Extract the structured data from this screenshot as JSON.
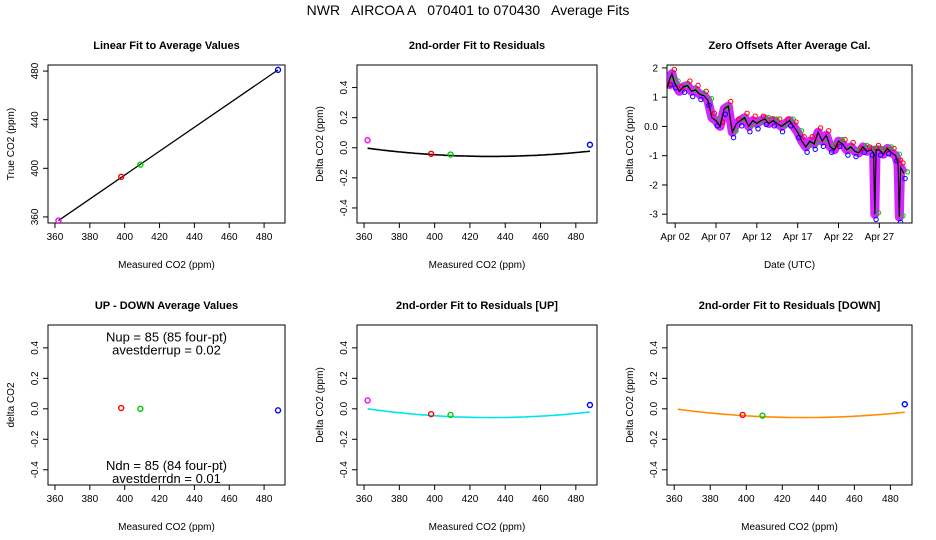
{
  "page": {
    "title": "NWR   AIRCOA A   070401 to 070430   Average Fits"
  },
  "chart_data": [
    {
      "id": "p1",
      "type": "scatter",
      "title": "Linear Fit to Average Values",
      "xlabel": "Measured CO2 (ppm)",
      "ylabel": "True CO2 (ppm)",
      "xlim": [
        356,
        492
      ],
      "ylim": [
        355,
        485
      ],
      "xticks": [
        360,
        380,
        400,
        420,
        440,
        460,
        480
      ],
      "yticks": [
        360,
        400,
        440,
        480
      ],
      "yticks_rotated": true,
      "points": [
        {
          "x": 362,
          "y": 357,
          "color": "#ff00ff"
        },
        {
          "x": 398,
          "y": 393,
          "color": "#ff0000"
        },
        {
          "x": 409,
          "y": 403,
          "color": "#00cc00"
        },
        {
          "x": 488,
          "y": 481,
          "color": "#0000ff"
        }
      ],
      "lines": [
        {
          "x": [
            362,
            488
          ],
          "y": [
            357,
            481
          ],
          "color": "#000000"
        }
      ]
    },
    {
      "id": "p2",
      "type": "scatter",
      "title": "2nd-order Fit to Residuals",
      "xlabel": "Measured CO2 (ppm)",
      "ylabel": "Delta CO2 (ppm)",
      "xlim": [
        356,
        492
      ],
      "ylim": [
        -0.5,
        0.55
      ],
      "xticks": [
        360,
        380,
        400,
        420,
        440,
        460,
        480
      ],
      "yticks": [
        -0.4,
        -0.2,
        0.0,
        0.2,
        0.4
      ],
      "yticks_rotated": true,
      "points": [
        {
          "x": 362,
          "y": 0.05,
          "color": "#ff00ff"
        },
        {
          "x": 398,
          "y": -0.04,
          "color": "#ff0000"
        },
        {
          "x": 409,
          "y": -0.045,
          "color": "#00cc00"
        },
        {
          "x": 488,
          "y": 0.02,
          "color": "#0000ff"
        }
      ],
      "curves": [
        {
          "xmin": 362,
          "xmax": 488,
          "coef": [
            1.11e-05,
            432,
            -0.0574
          ],
          "color": "#000000"
        }
      ]
    },
    {
      "id": "p3",
      "type": "line",
      "title": "Zero Offsets After Average Cal.",
      "xlabel": "Date (UTC)",
      "ylabel": "Delta CO2 (ppm)",
      "xlim": [
        0,
        30
      ],
      "ylim": [
        -3.3,
        2.1
      ],
      "xticks": [
        1,
        6,
        11,
        16,
        21,
        26
      ],
      "xticklabels": [
        "Apr 02",
        "Apr 07",
        "Apr 12",
        "Apr 17",
        "Apr 22",
        "Apr 27"
      ],
      "yticks": [
        -3,
        -2,
        -1,
        0,
        1,
        2
      ],
      "yticks_rotated": false,
      "x": [
        0,
        0.3,
        0.6,
        0.9,
        1.5,
        2.0,
        2.5,
        3.0,
        3.5,
        4.0,
        4.5,
        5.0,
        5.5,
        6.0,
        6.5,
        7.0,
        7.5,
        8.0,
        8.5,
        9.0,
        9.5,
        10.0,
        10.5,
        11.0,
        11.5,
        12.0,
        12.5,
        13.0,
        13.5,
        14.0,
        14.5,
        15.0,
        15.5,
        16.0,
        16.5,
        17.0,
        17.5,
        18.0,
        18.5,
        19.0,
        19.5,
        20.0,
        20.5,
        21.0,
        21.5,
        22.0,
        22.5,
        23.0,
        23.5,
        24.0,
        24.5,
        25.0,
        25.3,
        25.45,
        25.6,
        26.0,
        26.5,
        27.0,
        27.5,
        28.0,
        28.3,
        28.45,
        28.6,
        29.0
      ],
      "y": [
        1.3,
        1.6,
        1.8,
        1.5,
        1.2,
        1.35,
        1.4,
        1.2,
        1.25,
        1.1,
        1.05,
        0.9,
        0.3,
        0.2,
        0.0,
        0.6,
        0.7,
        -0.2,
        0.1,
        0.2,
        0.3,
        0.0,
        0.2,
        0.1,
        0.2,
        0.25,
        0.1,
        0.2,
        0.1,
        0.0,
        0.1,
        0.2,
        0.0,
        -0.2,
        -0.5,
        -0.7,
        -0.5,
        -0.6,
        -0.2,
        -0.5,
        -0.3,
        -0.7,
        -0.8,
        -0.5,
        -0.6,
        -0.8,
        -0.7,
        -0.85,
        -0.9,
        -0.7,
        -0.85,
        -0.8,
        -0.9,
        -3.0,
        -0.8,
        -0.8,
        -0.95,
        -0.75,
        -0.9,
        -1.0,
        -1.3,
        -3.1,
        -1.4,
        -1.6
      ],
      "band_color": "#cc00ff",
      "series_colors": [
        "#000000",
        "#0000ff",
        "#ff0000",
        "#00cc00"
      ]
    },
    {
      "id": "p4",
      "type": "scatter",
      "title": "UP - DOWN Average Values",
      "xlabel": "Measured CO2 (ppm)",
      "ylabel": "delta CO2",
      "xlim": [
        356,
        492
      ],
      "ylim": [
        -0.5,
        0.55
      ],
      "xticks": [
        360,
        380,
        400,
        420,
        440,
        460,
        480
      ],
      "yticks": [
        -0.4,
        -0.2,
        0.0,
        0.2,
        0.4
      ],
      "yticks_rotated": true,
      "points": [
        {
          "x": 398,
          "y": 0.005,
          "color": "#ff0000"
        },
        {
          "x": 409,
          "y": 0.0,
          "color": "#00cc00"
        },
        {
          "x": 488,
          "y": -0.01,
          "color": "#0000ff"
        }
      ],
      "annotations": [
        {
          "text": "Nup = 85 (85 four-pt)",
          "x": 424,
          "y": 0.475
        },
        {
          "text": "avestderrup =  0.02",
          "x": 424,
          "y": 0.39
        },
        {
          "text": "Ndn = 85 (84 four-pt)",
          "x": 424,
          "y": -0.37
        },
        {
          "text": "avestderrdn =  0.01",
          "x": 424,
          "y": -0.455
        }
      ]
    },
    {
      "id": "p5",
      "type": "scatter",
      "title": "2nd-order Fit to Residuals [UP]",
      "xlabel": "Measured CO2 (ppm)",
      "ylabel": "Delta CO2 (ppm)",
      "xlim": [
        356,
        492
      ],
      "ylim": [
        -0.5,
        0.55
      ],
      "xticks": [
        360,
        380,
        400,
        420,
        440,
        460,
        480
      ],
      "yticks": [
        -0.4,
        -0.2,
        0.0,
        0.2,
        0.4
      ],
      "yticks_rotated": true,
      "points": [
        {
          "x": 362,
          "y": 0.055,
          "color": "#ff00ff"
        },
        {
          "x": 398,
          "y": -0.035,
          "color": "#ff0000"
        },
        {
          "x": 409,
          "y": -0.04,
          "color": "#00cc00"
        },
        {
          "x": 488,
          "y": 0.025,
          "color": "#0000ff"
        }
      ],
      "curves": [
        {
          "xmin": 362,
          "xmax": 488,
          "coef": [
            1.17e-05,
            432,
            -0.0574
          ],
          "color": "#00e5ee"
        }
      ]
    },
    {
      "id": "p6",
      "type": "scatter",
      "title": "2nd-order Fit to Residuals [DOWN]",
      "xlabel": "Measured CO2 (ppm)",
      "ylabel": "Delta CO2 (ppm)",
      "xlim": [
        356,
        492
      ],
      "ylim": [
        -0.5,
        0.55
      ],
      "xticks": [
        360,
        380,
        400,
        420,
        440,
        460,
        480
      ],
      "yticks": [
        -0.4,
        -0.2,
        0.0,
        0.2,
        0.4
      ],
      "yticks_rotated": true,
      "points": [
        {
          "x": 398,
          "y": -0.04,
          "color": "#ff0000"
        },
        {
          "x": 409,
          "y": -0.045,
          "color": "#00cc00"
        },
        {
          "x": 488,
          "y": 0.03,
          "color": "#0000ff"
        }
      ],
      "curves": [
        {
          "xmin": 362,
          "xmax": 488,
          "coef": [
            1.11e-05,
            432,
            -0.0574
          ],
          "color": "#ff8c00"
        }
      ]
    }
  ]
}
